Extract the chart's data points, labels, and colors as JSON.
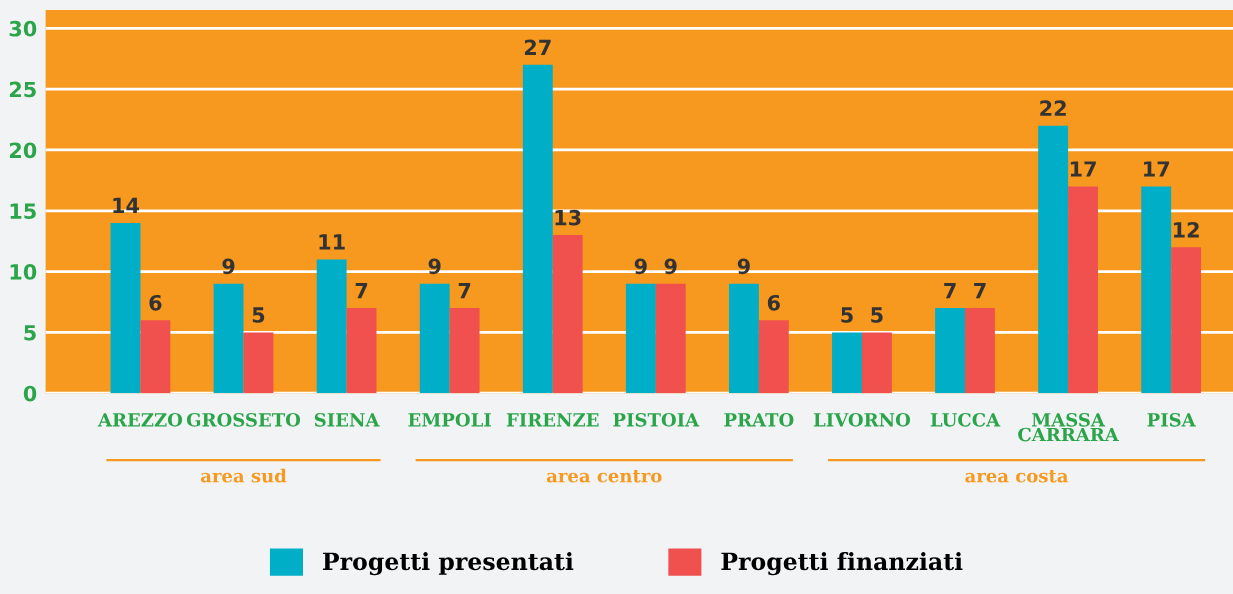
{
  "chart_data": {
    "type": "bar",
    "categories": [
      "AREZZO",
      "GROSSETO",
      "SIENA",
      "EMPOLI",
      "FIRENZE",
      "PISTOIA",
      "PRATO",
      "LIVORNO",
      "LUCCA",
      "MASSA\nCARRARA",
      "PISA"
    ],
    "series": [
      {
        "name": "Progetti presentati",
        "color": "#00aec7",
        "values": [
          14,
          9,
          11,
          9,
          27,
          9,
          9,
          5,
          7,
          22,
          17
        ]
      },
      {
        "name": "Progetti finanziati",
        "color": "#f0514f",
        "values": [
          6,
          5,
          7,
          7,
          13,
          9,
          6,
          5,
          7,
          17,
          12
        ]
      }
    ],
    "ylim": [
      0,
      31.5
    ],
    "yticks": [
      0,
      5,
      10,
      15,
      20,
      25,
      30
    ],
    "grid": "y",
    "data_labels": true,
    "legend": "bottom",
    "annotations": [
      "area sud",
      "area centro",
      "area costa"
    ]
  }
}
